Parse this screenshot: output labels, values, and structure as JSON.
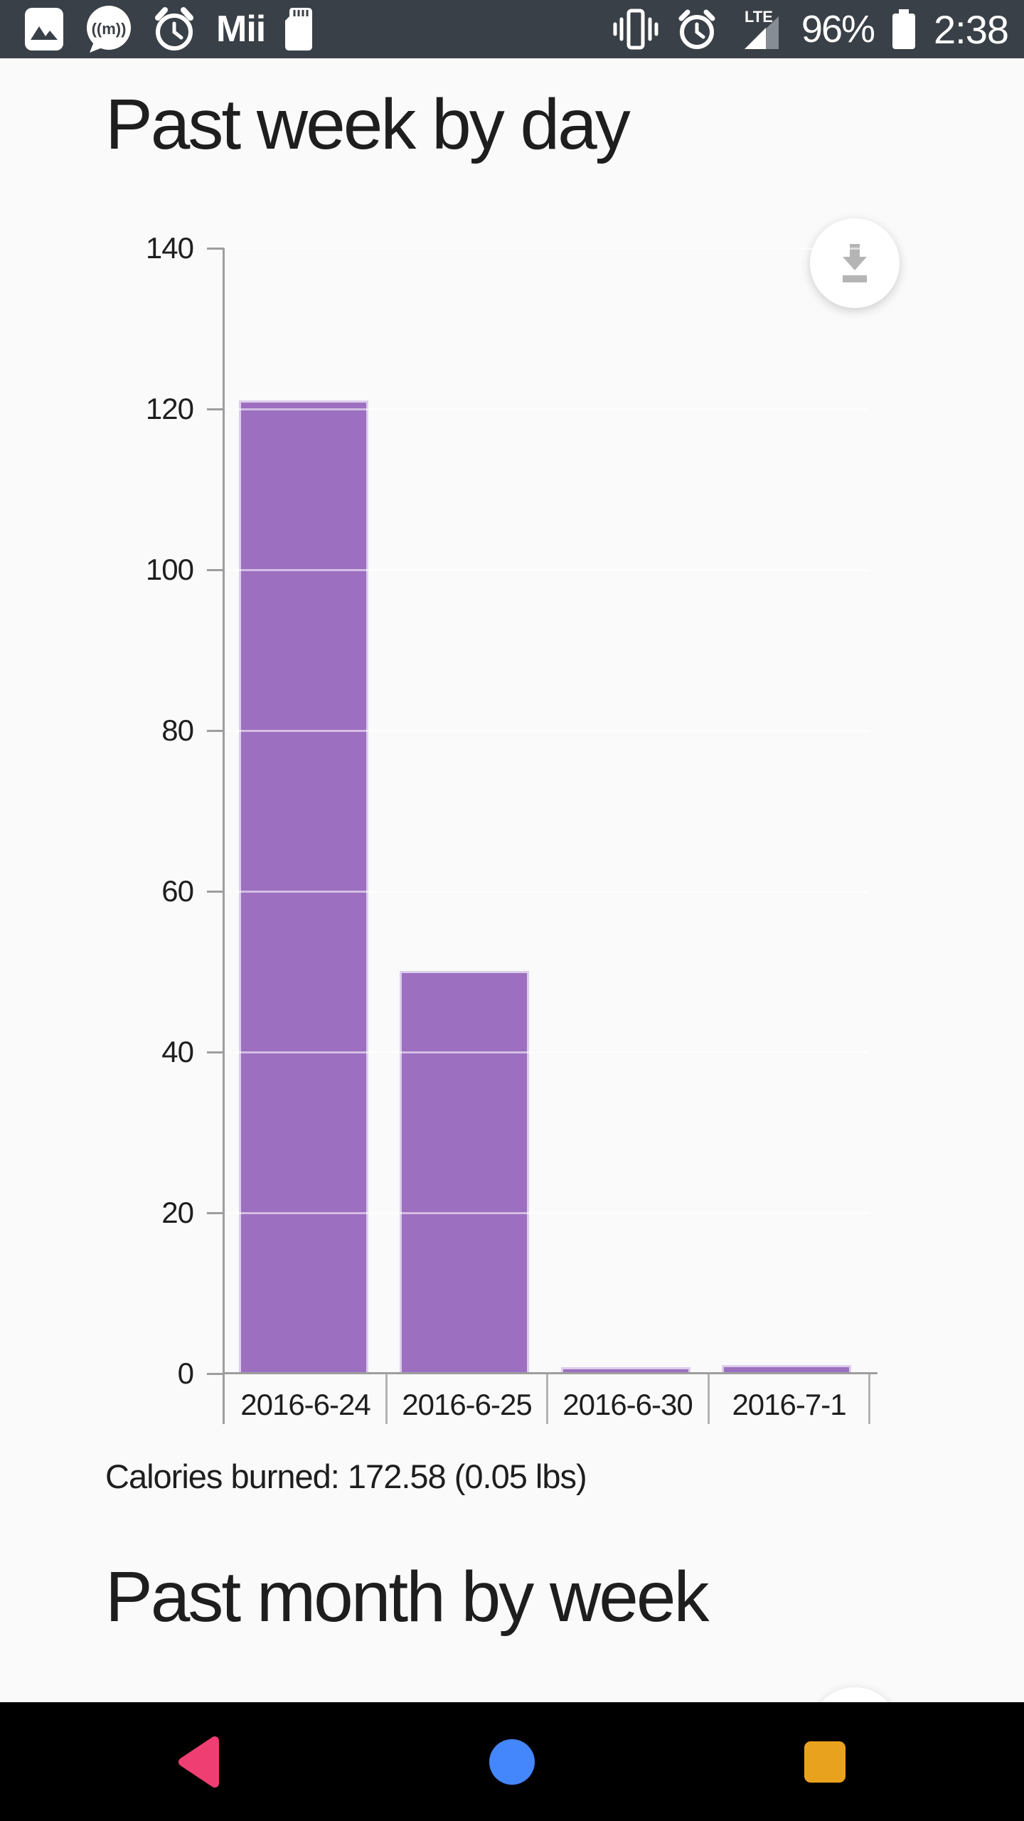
{
  "colors": {
    "status_bar_bg": "#3a4047",
    "page_bg": "#fafafa",
    "text": "#1e1e1e",
    "axis": "#9e9e9e"
  },
  "status_bar": {
    "left_icons": [
      "gallery-icon",
      "messaging-icon",
      "alarm-icon",
      "sdcard-icon"
    ],
    "carrier_label": "Mii",
    "right_icons": [
      "vibrate-icon",
      "alarm-icon",
      "signal-icon",
      "battery-icon"
    ],
    "network_label": "LTE",
    "battery_percent": "96%",
    "time": "2:38"
  },
  "sections": {
    "week": {
      "title": "Past week by day",
      "summary": "Calories burned: 172.58 (0.05 lbs)"
    },
    "month": {
      "title": "Past month by week"
    }
  },
  "chart_data": {
    "type": "bar",
    "title": "Past week by day",
    "categories": [
      "2016-6-24",
      "2016-6-25",
      "2016-6-30",
      "2016-7-1"
    ],
    "values": [
      121,
      50,
      0.7,
      1
    ],
    "xlabel": "",
    "ylabel": "",
    "ylim": [
      0,
      140
    ],
    "yticks": [
      0,
      20,
      40,
      60,
      80,
      100,
      120,
      140
    ],
    "grid": "horizontal gridlines, white, visible where they cross bars",
    "legend": "none",
    "bar_color": "#9c6fc0",
    "bar_border_color": "#ddcdec"
  },
  "fab": {
    "icon": "download-icon"
  },
  "nav_bar": {
    "back_color": "#ee3e72",
    "home_color": "#4486fb",
    "recents_color": "#e9a21e"
  }
}
